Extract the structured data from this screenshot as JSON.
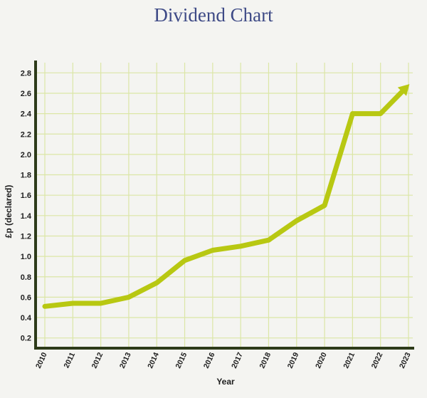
{
  "chart_data": {
    "type": "line",
    "title": "Dividend Chart",
    "xlabel": "Year",
    "ylabel": "£p (declared)",
    "x": [
      "2010",
      "2011",
      "2012",
      "2013",
      "2014",
      "2015",
      "2016",
      "2017",
      "2018",
      "2019",
      "2020",
      "2021",
      "2022",
      "2023"
    ],
    "y_ticks": [
      "0.2",
      "0.4",
      "0.6",
      "0.8",
      "1.0",
      "1.2",
      "1.4",
      "1.6",
      "1.8",
      "2.0",
      "2.2",
      "2.4",
      "2.6",
      "2.8"
    ],
    "series": [
      {
        "values": [
          0.51,
          0.54,
          0.54,
          0.6,
          0.74,
          0.96,
          1.06,
          1.1,
          1.16,
          1.35,
          1.5,
          2.4,
          2.4,
          2.68
        ]
      }
    ],
    "ylim": [
      0.1,
      2.9
    ],
    "grid": true,
    "legend": "none",
    "colors": {
      "line": "#b8c812",
      "grid": "#dbe6a6",
      "axis": "#2d3a19",
      "title": "#3e4a86"
    }
  }
}
